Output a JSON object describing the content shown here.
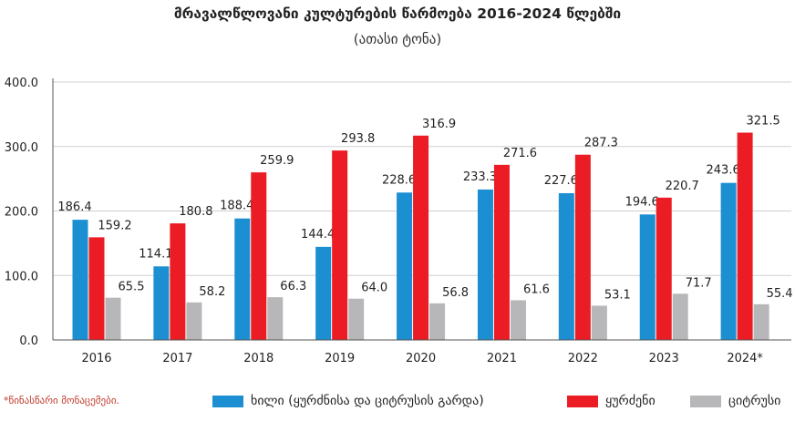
{
  "title": "მრავალწლოვანი კულტურების წარმოება 2016-2024 წლებში",
  "subtitle": "(ათასი ტონა)",
  "footnote": "*წინასწარი მონაცემები.",
  "colors": {
    "fruits": "#1b8fd2",
    "grapes": "#ec1c24",
    "citrus": "#b7b7b9",
    "grid": "#d0d0d0",
    "axis": "#555555"
  },
  "chart_data": {
    "type": "bar",
    "title": "მრავალწლოვანი კულტურების წარმოება 2016-2024 წლებში",
    "subtitle": "(ათასი ტონა)",
    "categories": [
      "2016",
      "2017",
      "2018",
      "2019",
      "2020",
      "2021",
      "2022",
      "2023",
      "2024*"
    ],
    "series": [
      {
        "name": "ხილი (ყურძნისა და ციტრუსის გარდა)",
        "values": [
          186.4,
          114.1,
          188.4,
          144.4,
          228.6,
          233.3,
          227.6,
          194.6,
          243.6
        ],
        "labels": [
          "186.4",
          "114.1",
          "188.4",
          "144.4",
          "228.6",
          "233.3",
          "227.6",
          "194.6",
          "243.6"
        ]
      },
      {
        "name": "ყურძენი",
        "values": [
          159.2,
          180.8,
          259.9,
          293.8,
          316.9,
          271.6,
          287.3,
          220.7,
          321.5
        ],
        "labels": [
          "159.2",
          "180.8",
          "259.9",
          "293.8",
          "316.9",
          "271.6",
          "287.3",
          "220.7",
          "321.5"
        ]
      },
      {
        "name": "ციტრუსი",
        "values": [
          65.5,
          58.2,
          66.3,
          64.0,
          56.8,
          61.6,
          53.1,
          71.7,
          55.4
        ],
        "labels": [
          "65.5",
          "58.2",
          "66.3",
          "64.0",
          "56.8",
          "61.6",
          "53.1",
          "71.7",
          "55.4"
        ]
      }
    ],
    "yticks": [
      "0.0",
      "100.0",
      "200.0",
      "300.0",
      "400.0"
    ],
    "ylim": [
      0,
      400
    ],
    "grid": true,
    "legend": "bottom",
    "xlabel": "",
    "ylabel": ""
  }
}
